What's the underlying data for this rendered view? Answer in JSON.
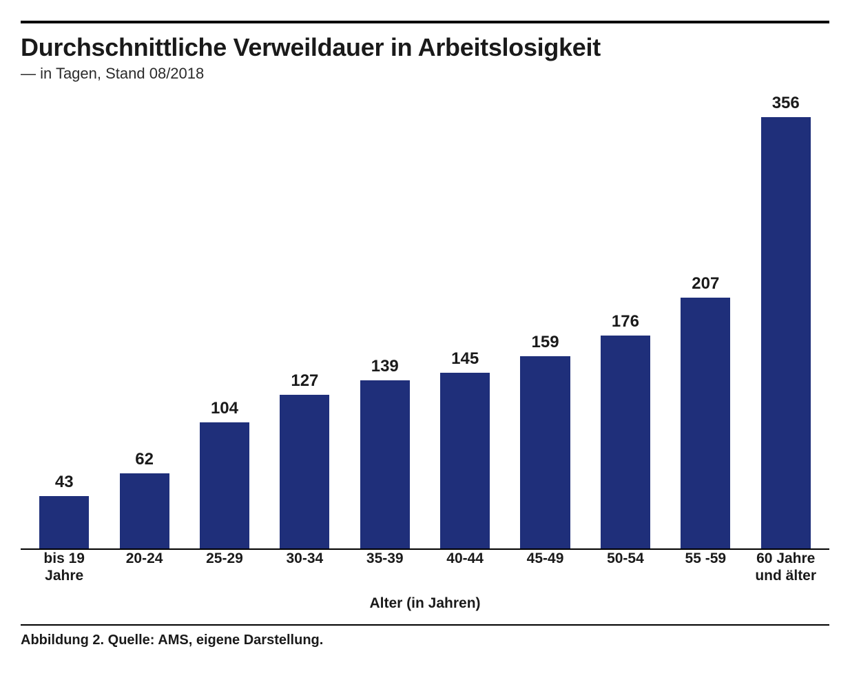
{
  "chart": {
    "type": "bar",
    "title": "Durchschnittliche Verweildauer in Arbeitslosigkeit",
    "subtitle": "— in Tagen, Stand 08/2018",
    "categories": [
      "bis 19 Jahre",
      "20-24",
      "25-29",
      "30-34",
      "35-39",
      "40-44",
      "45-49",
      "50-54",
      "55 -59",
      "60 Jahre und älter"
    ],
    "values": [
      43,
      62,
      104,
      127,
      139,
      145,
      159,
      176,
      207,
      356
    ],
    "bar_color": "#1f2f7a",
    "value_label_fontsize": 24,
    "category_label_fontsize": 21,
    "title_fontsize": 36,
    "subtitle_fontsize": 22,
    "x_axis_title": "Alter (in Jahren)",
    "x_axis_title_fontsize": 21,
    "ylim": [
      0,
      380
    ],
    "background_color": "#ffffff",
    "axis_line_color": "#000000",
    "bar_width_ratio": 0.62,
    "top_rule_width": 4,
    "mid_rule_width": 2
  },
  "caption": "Abbildung 2. Quelle: AMS, eigene Darstellung."
}
